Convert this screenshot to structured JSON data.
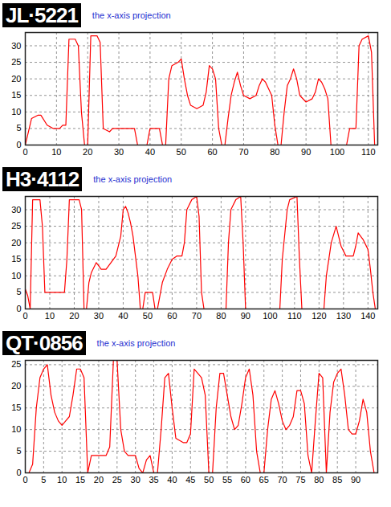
{
  "chart_data": [
    {
      "type": "line",
      "title": "JL·5221",
      "subtitle": "the x-axis projection",
      "color": "#ff0000",
      "grid": true,
      "xlim": [
        0,
        113
      ],
      "ylim": [
        0,
        34
      ],
      "xticks": [
        0,
        10,
        20,
        30,
        40,
        50,
        60,
        70,
        80,
        90,
        100,
        110
      ],
      "yticks": [
        0,
        5,
        10,
        15,
        20,
        25,
        30
      ],
      "x": [
        0,
        1,
        2,
        4,
        5,
        7,
        9,
        11,
        12,
        13,
        14,
        16,
        17,
        18,
        19,
        20,
        21,
        23,
        24,
        25,
        27,
        28,
        30,
        33,
        35,
        36,
        39,
        40,
        43,
        44,
        45,
        46,
        47,
        49,
        50,
        51,
        52,
        53,
        55,
        57,
        58,
        59,
        60,
        61,
        62,
        63,
        64,
        65,
        66,
        67,
        68,
        69,
        70,
        72,
        74,
        75,
        76,
        77,
        78,
        79,
        80,
        81,
        82,
        83,
        84,
        85,
        86,
        87,
        88,
        90,
        92,
        93,
        94,
        95,
        96,
        97,
        98,
        103,
        104,
        106,
        107,
        108,
        110,
        111,
        112
      ],
      "values": [
        0,
        4,
        8,
        9,
        9,
        6,
        5,
        5,
        6,
        6,
        32,
        32,
        30,
        10,
        0,
        0,
        33,
        33,
        31,
        5,
        4,
        5,
        5,
        5,
        5,
        0,
        0,
        5,
        5,
        0,
        0,
        20,
        24,
        25,
        26,
        20,
        15,
        12,
        11,
        12,
        16,
        24,
        23,
        20,
        5,
        0,
        0,
        8,
        15,
        19,
        22,
        18,
        15,
        14,
        15,
        18,
        20,
        19,
        17,
        15,
        6,
        0,
        0,
        10,
        18,
        20,
        23,
        20,
        15,
        13,
        14,
        16,
        20,
        19,
        17,
        14,
        0,
        0,
        5,
        5,
        30,
        32,
        33,
        28,
        0
      ]
    },
    {
      "type": "line",
      "title": "H3·4112",
      "subtitle": "the x-axis projection",
      "color": "#ff0000",
      "grid": true,
      "xlim": [
        0,
        144
      ],
      "ylim": [
        0,
        34
      ],
      "xticks": [
        0,
        10,
        20,
        30,
        40,
        50,
        60,
        70,
        80,
        90,
        100,
        110,
        120,
        130,
        140
      ],
      "yticks": [
        0,
        5,
        10,
        15,
        20,
        25,
        30
      ],
      "x": [
        0,
        1,
        2,
        3,
        6,
        7,
        8,
        12,
        16,
        17,
        18,
        22,
        23,
        24,
        25,
        26,
        27,
        29,
        30,
        31,
        33,
        35,
        37,
        39,
        40,
        41,
        42,
        43,
        44,
        45,
        46,
        47,
        48,
        49,
        52,
        53,
        54,
        56,
        58,
        60,
        62,
        64,
        65,
        66,
        68,
        70,
        71,
        72,
        73,
        82,
        83,
        84,
        86,
        88,
        89,
        90,
        104,
        105,
        107,
        108,
        111,
        112,
        113,
        122,
        123,
        125,
        127,
        128,
        129,
        131,
        134,
        135,
        136,
        138,
        140,
        141,
        142,
        143
      ],
      "values": [
        6,
        4,
        0,
        33,
        33,
        25,
        5,
        5,
        5,
        15,
        33,
        33,
        30,
        0,
        0,
        8,
        11,
        14,
        13,
        12,
        12,
        14,
        16,
        22,
        30,
        31,
        29,
        26,
        22,
        16,
        10,
        0,
        0,
        5,
        5,
        0,
        0,
        8,
        12,
        15,
        16,
        16,
        20,
        30,
        33,
        34,
        28,
        5,
        0,
        0,
        20,
        30,
        33,
        34,
        20,
        0,
        0,
        15,
        30,
        33,
        34,
        15,
        0,
        0,
        10,
        20,
        25,
        22,
        19,
        16,
        16,
        19,
        23,
        21,
        18,
        12,
        5,
        0
      ]
    },
    {
      "type": "line",
      "title": "QT·0856",
      "subtitle": "the x-axis projection",
      "color": "#ff0000",
      "grid": true,
      "xlim": [
        0,
        96
      ],
      "ylim": [
        0,
        26
      ],
      "xticks": [
        0,
        5,
        10,
        15,
        20,
        25,
        30,
        35,
        40,
        45,
        50,
        55,
        60,
        65,
        70,
        75,
        80,
        85,
        90
      ],
      "yticks": [
        0,
        5,
        10,
        15,
        20,
        25
      ],
      "x": [
        0,
        1,
        2,
        3,
        4,
        5,
        6,
        7,
        8,
        9,
        10,
        11,
        12,
        13,
        14,
        15,
        16,
        17,
        18,
        20,
        22,
        23,
        24,
        25,
        26,
        27,
        28,
        30,
        31,
        32,
        33,
        34,
        35,
        36,
        37,
        38,
        39,
        40,
        41,
        43,
        44,
        45,
        46,
        47,
        48,
        49,
        50,
        51,
        52,
        53,
        54,
        55,
        56,
        57,
        58,
        59,
        60,
        61,
        62,
        63,
        64,
        65,
        66,
        67,
        68,
        69,
        70,
        71,
        72,
        73,
        74,
        75,
        76,
        77,
        78,
        79,
        80,
        81,
        82,
        83,
        84,
        85,
        86,
        87,
        88,
        89,
        90,
        91,
        92,
        93,
        94,
        95
      ],
      "values": [
        0,
        0,
        2,
        15,
        22,
        24,
        25,
        18,
        14,
        12,
        11,
        12,
        13,
        18,
        24,
        24,
        22,
        0,
        4,
        4,
        4,
        6,
        26,
        26,
        10,
        5,
        4,
        4,
        1,
        0,
        3,
        4,
        0,
        0,
        10,
        22,
        23,
        15,
        8,
        7,
        7,
        9,
        24,
        23,
        22,
        18,
        0,
        0,
        15,
        23,
        23,
        18,
        13,
        10,
        11,
        16,
        22,
        24,
        18,
        5,
        0,
        0,
        10,
        17,
        19,
        16,
        12,
        10,
        11,
        13,
        19,
        19,
        16,
        4,
        0,
        12,
        23,
        22,
        0,
        14,
        21,
        23,
        24,
        18,
        10,
        9,
        9,
        12,
        17,
        14,
        5,
        0
      ]
    }
  ]
}
